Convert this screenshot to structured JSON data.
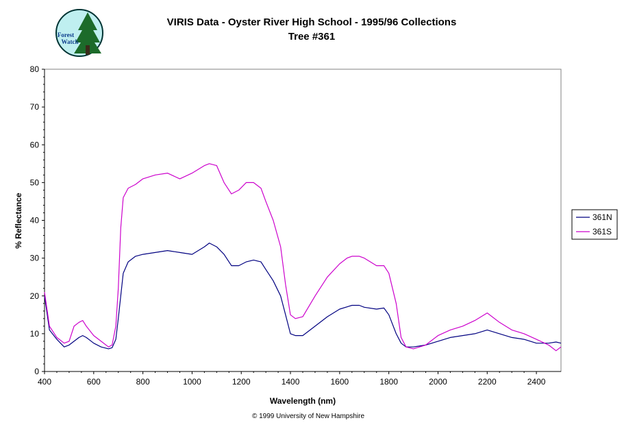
{
  "logo": {
    "text_line1": "Forest",
    "text_line2": "Watch"
  },
  "copyright": "© 1999 University of New Hampshire",
  "chart_data": {
    "type": "line",
    "title": "VIRIS Data - Oyster River High School - 1995/96 Collections",
    "subtitle": "Tree #361",
    "xlabel": "Wavelength (nm)",
    "ylabel": "% Reflectance",
    "xlim": [
      400,
      2500
    ],
    "ylim": [
      0,
      80
    ],
    "xticks": [
      400,
      600,
      800,
      1000,
      1200,
      1400,
      1600,
      1800,
      2000,
      2200,
      2400
    ],
    "yticks": [
      0,
      10,
      20,
      30,
      40,
      50,
      60,
      70,
      80
    ],
    "grid": false,
    "legend": "right",
    "series": [
      {
        "name": "361N",
        "color": "#000080",
        "x": [
          400,
          420,
          450,
          480,
          500,
          520,
          540,
          555,
          570,
          600,
          630,
          660,
          675,
          690,
          700,
          720,
          740,
          770,
          800,
          850,
          900,
          950,
          1000,
          1050,
          1070,
          1100,
          1130,
          1160,
          1190,
          1220,
          1250,
          1280,
          1300,
          1330,
          1360,
          1380,
          1400,
          1420,
          1450,
          1500,
          1550,
          1600,
          1650,
          1680,
          1700,
          1750,
          1780,
          1800,
          1830,
          1850,
          1870,
          1900,
          1950,
          2000,
          2050,
          2100,
          2150,
          2200,
          2250,
          2300,
          2350,
          2400,
          2450,
          2480,
          2500
        ],
        "values": [
          20,
          11,
          8.5,
          6.5,
          7,
          8,
          9,
          9.5,
          9,
          7.5,
          6.5,
          6,
          6.3,
          8.5,
          14,
          26,
          29,
          30.5,
          31,
          31.5,
          32,
          31.5,
          31,
          33,
          34,
          33,
          31,
          28,
          28,
          29,
          29.5,
          29,
          27,
          24,
          20,
          15,
          10,
          9.5,
          9.5,
          12,
          14.5,
          16.5,
          17.5,
          17.5,
          17,
          16.5,
          16.8,
          15,
          10,
          7.5,
          6.5,
          6.5,
          7,
          8,
          9,
          9.5,
          10,
          11,
          10,
          9,
          8.5,
          7.5,
          7.5,
          7.8,
          7.5
        ]
      },
      {
        "name": "361S",
        "color": "#cc00cc",
        "x": [
          400,
          420,
          450,
          480,
          500,
          520,
          540,
          555,
          570,
          600,
          630,
          660,
          675,
          690,
          700,
          710,
          720,
          740,
          770,
          800,
          850,
          900,
          950,
          1000,
          1050,
          1070,
          1100,
          1130,
          1160,
          1190,
          1220,
          1250,
          1280,
          1300,
          1330,
          1360,
          1380,
          1400,
          1420,
          1450,
          1500,
          1550,
          1600,
          1630,
          1650,
          1680,
          1700,
          1750,
          1780,
          1800,
          1830,
          1850,
          1870,
          1900,
          1950,
          2000,
          2050,
          2100,
          2150,
          2200,
          2250,
          2300,
          2350,
          2400,
          2450,
          2480,
          2500
        ],
        "values": [
          21,
          12,
          9,
          7.5,
          8,
          12,
          13,
          13.5,
          12,
          9.5,
          8,
          6.5,
          7,
          12,
          22,
          38,
          46,
          48.5,
          49.5,
          51,
          52,
          52.5,
          51,
          52.5,
          54.5,
          55,
          54.5,
          50,
          47,
          48,
          50,
          50,
          48.5,
          45,
          40,
          33,
          23,
          15,
          14,
          14.5,
          20,
          25,
          28.5,
          30,
          30.5,
          30.5,
          30,
          28,
          28,
          26,
          18,
          9,
          6.5,
          6,
          7,
          9.5,
          11,
          12,
          13.5,
          15.5,
          13,
          11,
          10,
          8.5,
          7,
          5.5,
          6.5
        ]
      }
    ]
  }
}
